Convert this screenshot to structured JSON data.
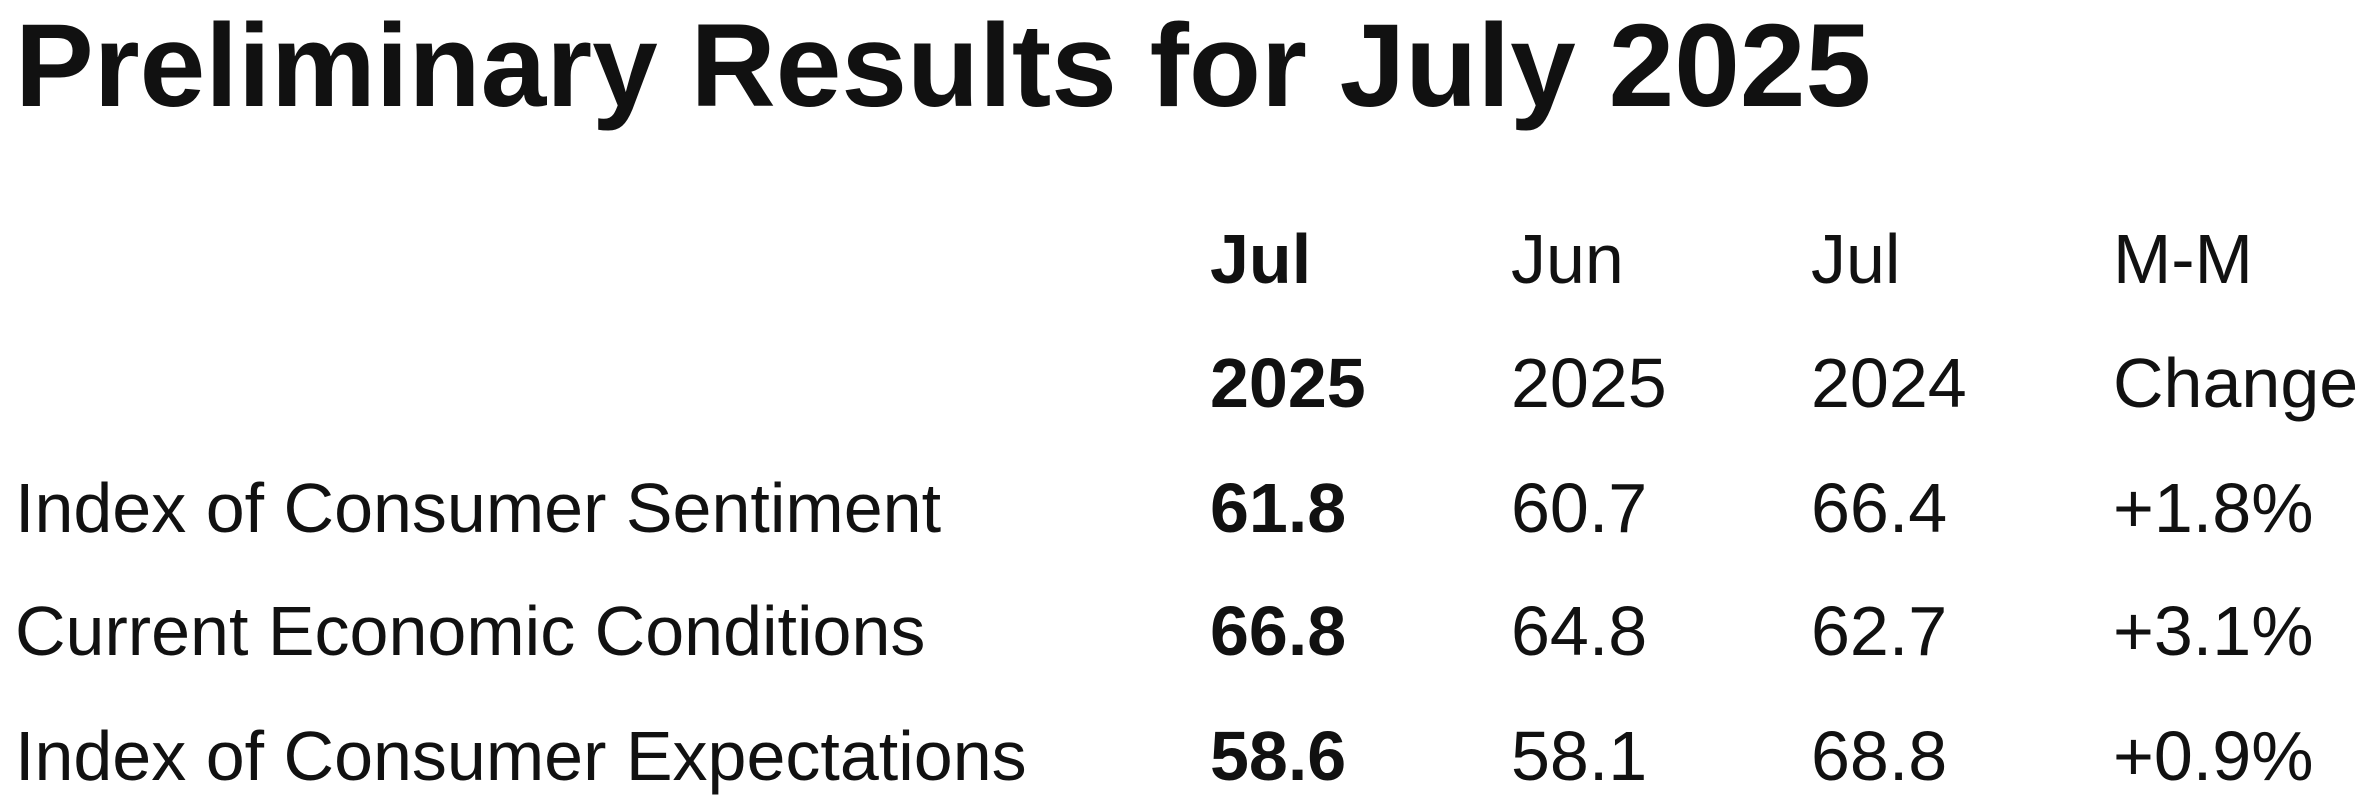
{
  "title": "Preliminary Results for July 2025",
  "table": {
    "header": [
      [
        "Jul",
        "2025"
      ],
      [
        "Jun",
        "2025"
      ],
      [
        "Jul",
        "2024"
      ],
      [
        "M-M",
        "Change"
      ]
    ],
    "rows": [
      [
        "Index of Consumer Sentiment",
        "61.8",
        "60.7",
        "66.4",
        "+1.8%"
      ],
      [
        "Current Economic Conditions",
        "66.8",
        "64.8",
        "62.7",
        "+3.1%"
      ],
      [
        "Index of Consumer Expectations",
        "58.6",
        "58.1",
        "68.8",
        "+0.9%"
      ]
    ]
  }
}
